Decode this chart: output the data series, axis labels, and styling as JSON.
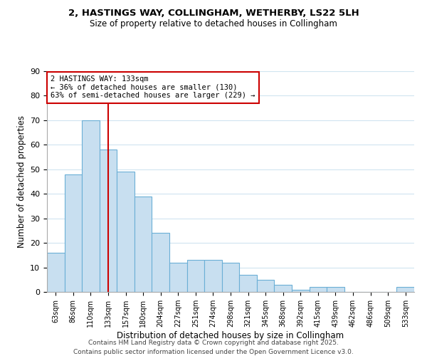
{
  "title": "2, HASTINGS WAY, COLLINGHAM, WETHERBY, LS22 5LH",
  "subtitle": "Size of property relative to detached houses in Collingham",
  "xlabel": "Distribution of detached houses by size in Collingham",
  "ylabel": "Number of detached properties",
  "bar_labels": [
    "63sqm",
    "86sqm",
    "110sqm",
    "133sqm",
    "157sqm",
    "180sqm",
    "204sqm",
    "227sqm",
    "251sqm",
    "274sqm",
    "298sqm",
    "321sqm",
    "345sqm",
    "368sqm",
    "392sqm",
    "415sqm",
    "439sqm",
    "462sqm",
    "486sqm",
    "509sqm",
    "533sqm"
  ],
  "bar_values": [
    16,
    48,
    70,
    58,
    49,
    39,
    24,
    12,
    13,
    13,
    12,
    7,
    5,
    3,
    1,
    2,
    2,
    0,
    0,
    0,
    2
  ],
  "bar_color": "#c8dff0",
  "bar_edge_color": "#6bafd6",
  "vline_x": 3,
  "vline_color": "#cc0000",
  "annotation_title": "2 HASTINGS WAY: 133sqm",
  "annotation_line1": "← 36% of detached houses are smaller (130)",
  "annotation_line2": "63% of semi-detached houses are larger (229) →",
  "annotation_box_facecolor": "#ffffff",
  "annotation_box_edgecolor": "#cc0000",
  "ylim": [
    0,
    90
  ],
  "yticks": [
    0,
    10,
    20,
    30,
    40,
    50,
    60,
    70,
    80,
    90
  ],
  "footer_line1": "Contains HM Land Registry data © Crown copyright and database right 2025.",
  "footer_line2": "Contains public sector information licensed under the Open Government Licence v3.0.",
  "background_color": "#ffffff",
  "grid_color": "#d0e4f0"
}
